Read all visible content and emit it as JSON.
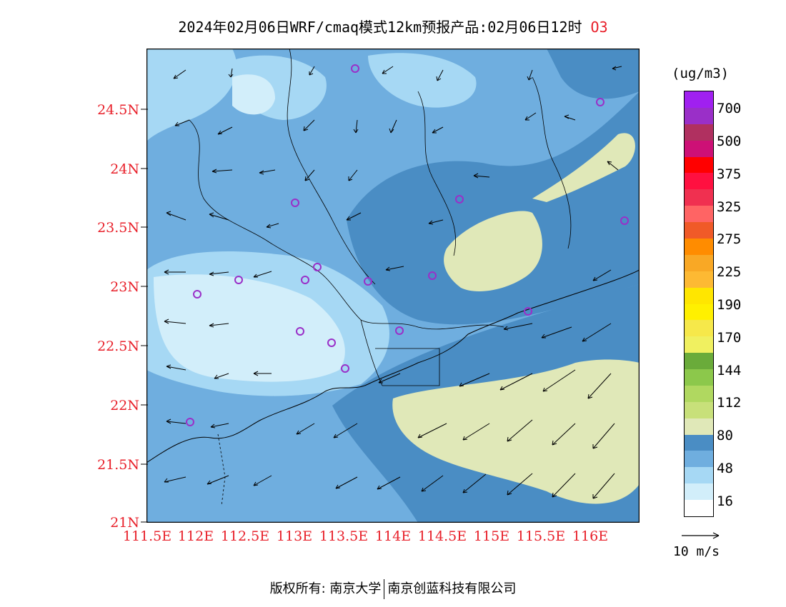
{
  "title": {
    "main": "2024年02月06日WRF/cmaq模式12km预报产品:02月06日12时",
    "species": "O3"
  },
  "colors": {
    "label_red": "#e8202a",
    "land_edge": "#000000"
  },
  "axes": {
    "y_labels": [
      "24.5N",
      "24N",
      "23.5N",
      "23N",
      "22.5N",
      "22N",
      "21.5N",
      "21N"
    ],
    "x_labels": [
      "111.5E",
      "112E",
      "112.5E",
      "113E",
      "113.5E",
      "114E",
      "114.5E",
      "115E",
      "115.5E",
      "116E"
    ]
  },
  "colorbar": {
    "unit": "(ug/m3)",
    "levels": [
      "700",
      "500",
      "375",
      "325",
      "275",
      "225",
      "190",
      "170",
      "144",
      "112",
      "80",
      "48",
      "16"
    ],
    "colors": [
      "#a020f0",
      "#9a2fc8",
      "#b03060",
      "#cd1076",
      "#ff0000",
      "#ff1040",
      "#f03050",
      "#ff6464",
      "#f05a28",
      "#ff8c00",
      "#f9a825",
      "#fdb933",
      "#ffe600",
      "#fff000",
      "#f6e84a",
      "#f0f060",
      "#6aab3a",
      "#8cc84b",
      "#b0d860",
      "#c8e07a",
      "#e0e8b8",
      "#4a8dc4",
      "#6faedf",
      "#a6d8f4",
      "#d2eefa",
      "#ffffff"
    ]
  },
  "reference": {
    "label": "10 m/s"
  },
  "footer": {
    "left": "版权所有: 南京大学",
    "right": "南京创蓝科技有限公司"
  }
}
